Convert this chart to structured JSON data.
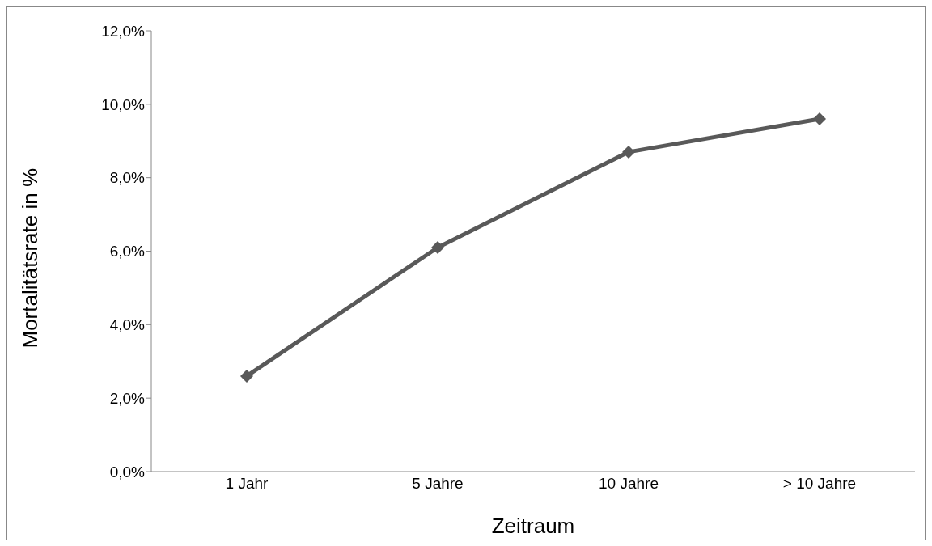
{
  "chart_data": {
    "type": "line",
    "xlabel": "Zeitraum",
    "ylabel": "Mortalitätsrate in %",
    "categories": [
      "1 Jahr",
      "5 Jahre",
      "10 Jahre",
      "> 10 Jahre"
    ],
    "series": [
      {
        "color": "#595959",
        "values": [
          2.6,
          6.1,
          8.7,
          9.6
        ]
      }
    ],
    "ylim": [
      0,
      12
    ],
    "yticks": [
      {
        "value": 0,
        "label": "0,0%"
      },
      {
        "value": 2,
        "label": "2,0%"
      },
      {
        "value": 4,
        "label": "4,0%"
      },
      {
        "value": 6,
        "label": "6,0%"
      },
      {
        "value": 8,
        "label": "8,0%"
      },
      {
        "value": 10,
        "label": "10,0%"
      },
      {
        "value": 12,
        "label": "12,0%"
      }
    ],
    "marker": "diamond",
    "line_style": "solid",
    "grid": false,
    "legend": false
  }
}
